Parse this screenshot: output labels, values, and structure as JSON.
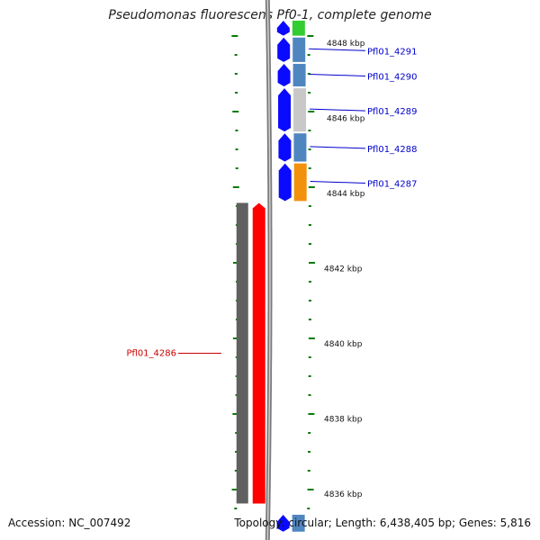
{
  "title": "Pseudomonas fluorescens Pf0-1, complete genome",
  "footer": {
    "accession": "Accession: NC_007492",
    "topology": "Topology: circular; Length: 6,438,405 bp; Genes: 5,816"
  },
  "colors": {
    "forward_cds": "#0a0aff",
    "reverse_cds": "#ff0000",
    "reverse_feature": "#606060",
    "tick": "#0a7a0a",
    "backbone": "#7a7a7a",
    "label_forward": "#0000cc",
    "label_reverse": "#cc0000"
  },
  "kbp_labels": [
    {
      "kbp": 4848,
      "text": "4848 kbp"
    },
    {
      "kbp": 4846,
      "text": "4846 kbp"
    },
    {
      "kbp": 4844,
      "text": "4844 kbp"
    },
    {
      "kbp": 4842,
      "text": "4842 kbp"
    },
    {
      "kbp": 4840,
      "text": "4840 kbp"
    },
    {
      "kbp": 4838,
      "text": "4838 kbp"
    },
    {
      "kbp": 4836,
      "text": "4836 kbp"
    }
  ],
  "genes": [
    {
      "id": "Pfl01_4291",
      "strand": "+",
      "start_kbp": 4847.5,
      "end_kbp": 4848.15,
      "cog_color": "#4f86c0",
      "labeled": true
    },
    {
      "id": "Pfl01_4290",
      "strand": "+",
      "start_kbp": 4846.85,
      "end_kbp": 4847.45,
      "cog_color": "#4f86c0",
      "labeled": true
    },
    {
      "id": "Pfl01_4289",
      "strand": "+",
      "start_kbp": 4845.65,
      "end_kbp": 4846.8,
      "cog_color": "#c8c8c8",
      "labeled": true
    },
    {
      "id": "Pfl01_4288",
      "strand": "+",
      "start_kbp": 4844.85,
      "end_kbp": 4845.6,
      "cog_color": "#4f86c0",
      "labeled": true
    },
    {
      "id": "Pfl01_4287",
      "strand": "+",
      "start_kbp": 4843.8,
      "end_kbp": 4844.8,
      "cog_color": "#f2920c",
      "labeled": true
    },
    {
      "id": "Pfl01_4286",
      "strand": "-",
      "start_kbp": 4835.75,
      "end_kbp": 4843.75,
      "cog_color": "#606060",
      "labeled": true
    },
    {
      "id": "",
      "strand": "+",
      "start_kbp": 4848.2,
      "end_kbp": 4848.6,
      "cog_color": "#33cc33",
      "labeled": false
    },
    {
      "id": "",
      "strand": "+",
      "start_kbp": 4835.0,
      "end_kbp": 4835.45,
      "cog_color": "#4f86c0",
      "labeled": false
    }
  ]
}
